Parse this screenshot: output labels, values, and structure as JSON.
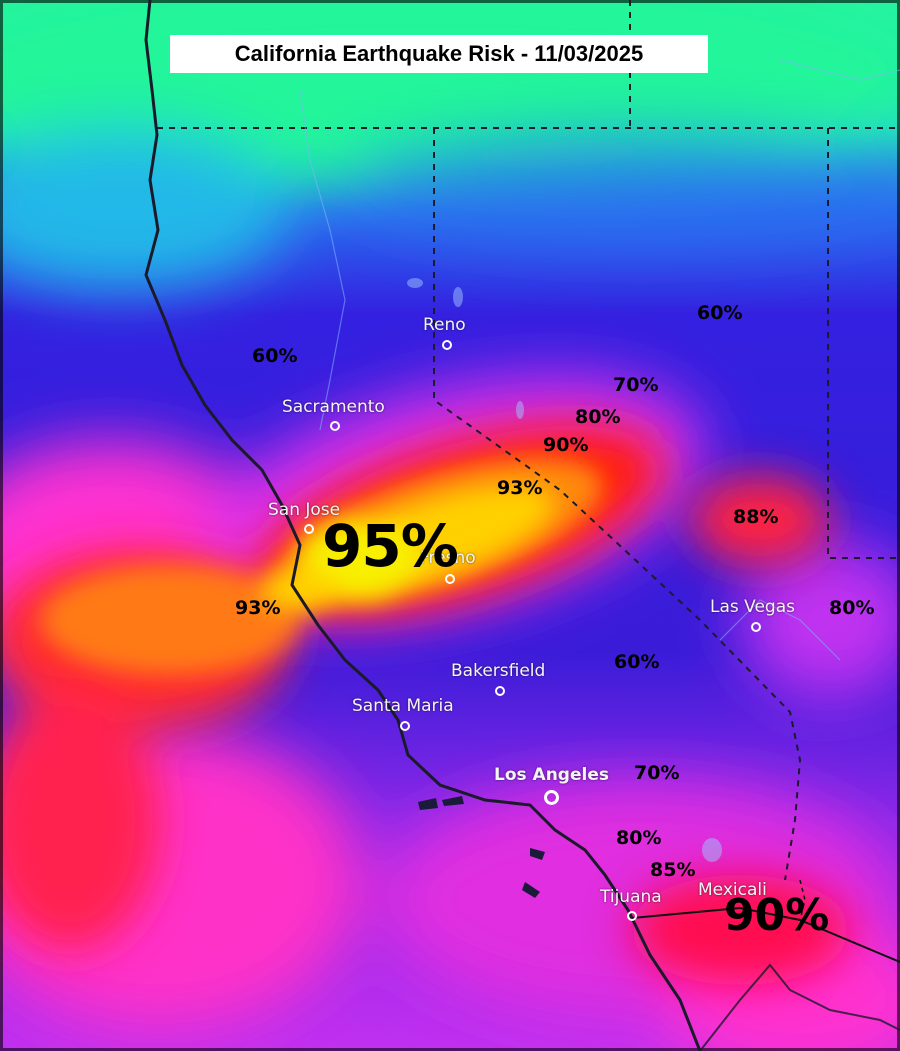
{
  "title": "California Earthquake Risk - 11/03/2025",
  "cities": {
    "reno": "Reno",
    "sacramento": "Sacramento",
    "san_jose": "San Jose",
    "fresno": "Fresno",
    "las_vegas": "Las Vegas",
    "bakersfield": "Bakersfield",
    "santa_maria": "Santa Maria",
    "los_angeles": "Los Angeles",
    "tijuana": "Tijuana",
    "mexicali": "Mexicali"
  },
  "risk_labels": {
    "reno_west": "60%",
    "nevada_north": "60%",
    "nv_70": "70%",
    "nv_80": "80%",
    "nv_90": "90%",
    "central_93": "93%",
    "bay_95": "95%",
    "nevada_88": "88%",
    "coast_93": "93%",
    "vegas_east": "80%",
    "mojave_60": "60%",
    "la_70": "70%",
    "la_80": "80%",
    "sd_85": "85%",
    "border_90": "90%"
  },
  "colors": {
    "peak": "#f5f500",
    "high": "#ff2a10",
    "elevated": "#ff2cd8",
    "moderate": "#3a1de0",
    "low": "#1ef59a"
  }
}
